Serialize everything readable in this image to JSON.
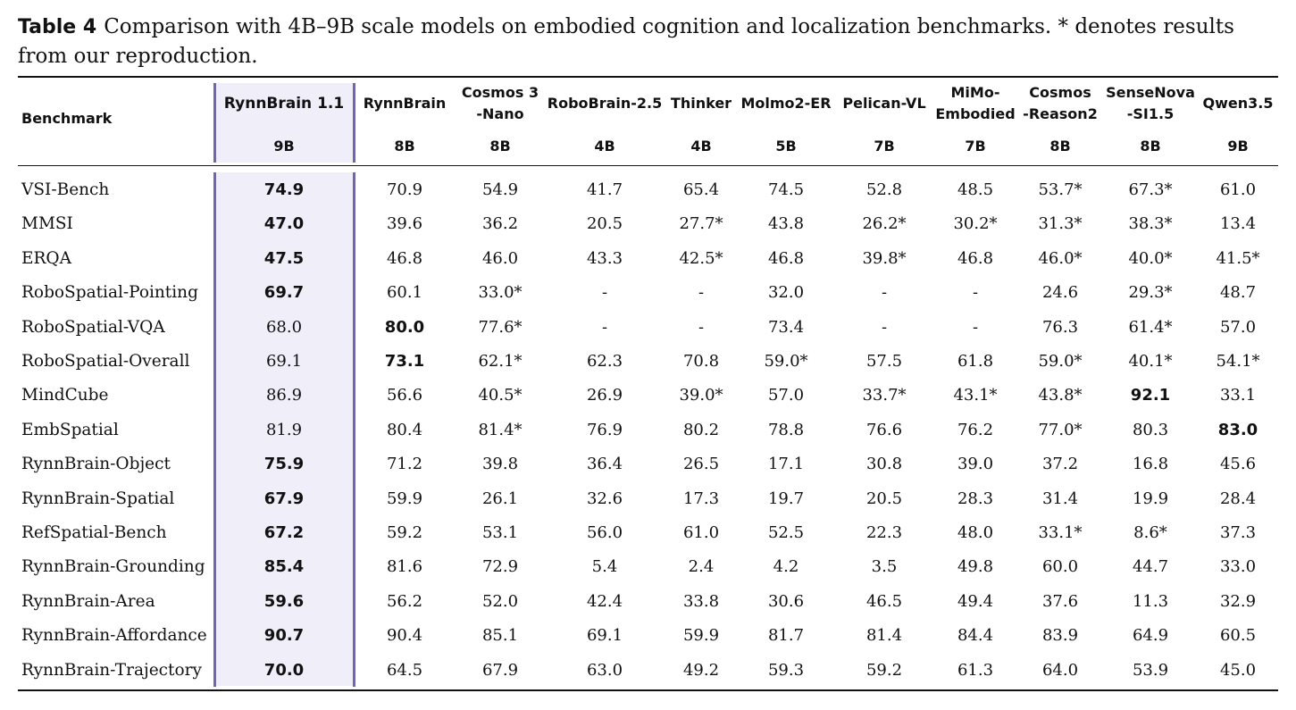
{
  "caption": {
    "label": "Table 4",
    "text": "Comparison with 4B–9B scale models on embodied cognition and localization benchmarks. * denotes results from our reproduction."
  },
  "table": {
    "benchmark_header": "Benchmark",
    "models": [
      {
        "name": [
          "RynnBrain 1.1"
        ],
        "size": "9B"
      },
      {
        "name": [
          "RynnBrain"
        ],
        "size": "8B"
      },
      {
        "name": [
          "Cosmos 3",
          "-Nano"
        ],
        "size": "8B"
      },
      {
        "name": [
          "RoboBrain-2.5"
        ],
        "size": "4B"
      },
      {
        "name": [
          "Thinker"
        ],
        "size": "4B"
      },
      {
        "name": [
          "Molmo2-ER"
        ],
        "size": "5B"
      },
      {
        "name": [
          "Pelican-VL"
        ],
        "size": "7B"
      },
      {
        "name": [
          "MiMo-",
          "Embodied"
        ],
        "size": "7B"
      },
      {
        "name": [
          "Cosmos",
          "-Reason2"
        ],
        "size": "8B"
      },
      {
        "name": [
          "SenseNova",
          "-SI1.5"
        ],
        "size": "8B"
      },
      {
        "name": [
          "Qwen3.5"
        ],
        "size": "9B"
      }
    ],
    "rows": [
      {
        "benchmark": "VSI-Bench",
        "values": [
          "74.9",
          "70.9",
          "54.9",
          "41.7",
          "65.4",
          "74.5",
          "52.8",
          "48.5",
          "53.7*",
          "67.3*",
          "61.0"
        ],
        "bold": [
          0
        ]
      },
      {
        "benchmark": "MMSI",
        "values": [
          "47.0",
          "39.6",
          "36.2",
          "20.5",
          "27.7*",
          "43.8",
          "26.2*",
          "30.2*",
          "31.3*",
          "38.3*",
          "13.4"
        ],
        "bold": [
          0
        ]
      },
      {
        "benchmark": "ERQA",
        "values": [
          "47.5",
          "46.8",
          "46.0",
          "43.3",
          "42.5*",
          "46.8",
          "39.8*",
          "46.8",
          "46.0*",
          "40.0*",
          "41.5*"
        ],
        "bold": [
          0
        ]
      },
      {
        "benchmark": "RoboSpatial-Pointing",
        "values": [
          "69.7",
          "60.1",
          "33.0*",
          "-",
          "-",
          "32.0",
          "-",
          "-",
          "24.6",
          "29.3*",
          "48.7"
        ],
        "bold": [
          0
        ]
      },
      {
        "benchmark": "RoboSpatial-VQA",
        "values": [
          "68.0",
          "80.0",
          "77.6*",
          "-",
          "-",
          "73.4",
          "-",
          "-",
          "76.3",
          "61.4*",
          "57.0"
        ],
        "bold": [
          1
        ]
      },
      {
        "benchmark": "RoboSpatial-Overall",
        "values": [
          "69.1",
          "73.1",
          "62.1*",
          "62.3",
          "70.8",
          "59.0*",
          "57.5",
          "61.8",
          "59.0*",
          "40.1*",
          "54.1*"
        ],
        "bold": [
          1
        ]
      },
      {
        "benchmark": "MindCube",
        "values": [
          "86.9",
          "56.6",
          "40.5*",
          "26.9",
          "39.0*",
          "57.0",
          "33.7*",
          "43.1*",
          "43.8*",
          "92.1",
          "33.1"
        ],
        "bold": [
          9
        ]
      },
      {
        "benchmark": "EmbSpatial",
        "values": [
          "81.9",
          "80.4",
          "81.4*",
          "76.9",
          "80.2",
          "78.8",
          "76.6",
          "76.2",
          "77.0*",
          "80.3",
          "83.0"
        ],
        "bold": [
          10
        ]
      },
      {
        "benchmark": "RynnBrain-Object",
        "values": [
          "75.9",
          "71.2",
          "39.8",
          "36.4",
          "26.5",
          "17.1",
          "30.8",
          "39.0",
          "37.2",
          "16.8",
          "45.6"
        ],
        "bold": [
          0
        ]
      },
      {
        "benchmark": "RynnBrain-Spatial",
        "values": [
          "67.9",
          "59.9",
          "26.1",
          "32.6",
          "17.3",
          "19.7",
          "20.5",
          "28.3",
          "31.4",
          "19.9",
          "28.4"
        ],
        "bold": [
          0
        ]
      },
      {
        "benchmark": "RefSpatial-Bench",
        "values": [
          "67.2",
          "59.2",
          "53.1",
          "56.0",
          "61.0",
          "52.5",
          "22.3",
          "48.0",
          "33.1*",
          "8.6*",
          "37.3"
        ],
        "bold": [
          0
        ]
      },
      {
        "benchmark": "RynnBrain-Grounding",
        "values": [
          "85.4",
          "81.6",
          "72.9",
          "5.4",
          "2.4",
          "4.2",
          "3.5",
          "49.8",
          "60.0",
          "44.7",
          "33.0"
        ],
        "bold": [
          0
        ]
      },
      {
        "benchmark": "RynnBrain-Area",
        "values": [
          "59.6",
          "56.2",
          "52.0",
          "42.4",
          "33.8",
          "30.6",
          "46.5",
          "49.4",
          "37.6",
          "11.3",
          "32.9"
        ],
        "bold": [
          0
        ]
      },
      {
        "benchmark": "RynnBrain-Affordance",
        "values": [
          "90.7",
          "90.4",
          "85.1",
          "69.1",
          "59.9",
          "81.7",
          "81.4",
          "84.4",
          "83.9",
          "64.9",
          "60.5"
        ],
        "bold": [
          0
        ]
      },
      {
        "benchmark": "RynnBrain-Trajectory",
        "values": [
          "70.0",
          "64.5",
          "67.9",
          "63.0",
          "49.2",
          "59.3",
          "59.2",
          "61.3",
          "64.0",
          "53.9",
          "45.0"
        ],
        "bold": [
          0
        ]
      }
    ]
  }
}
